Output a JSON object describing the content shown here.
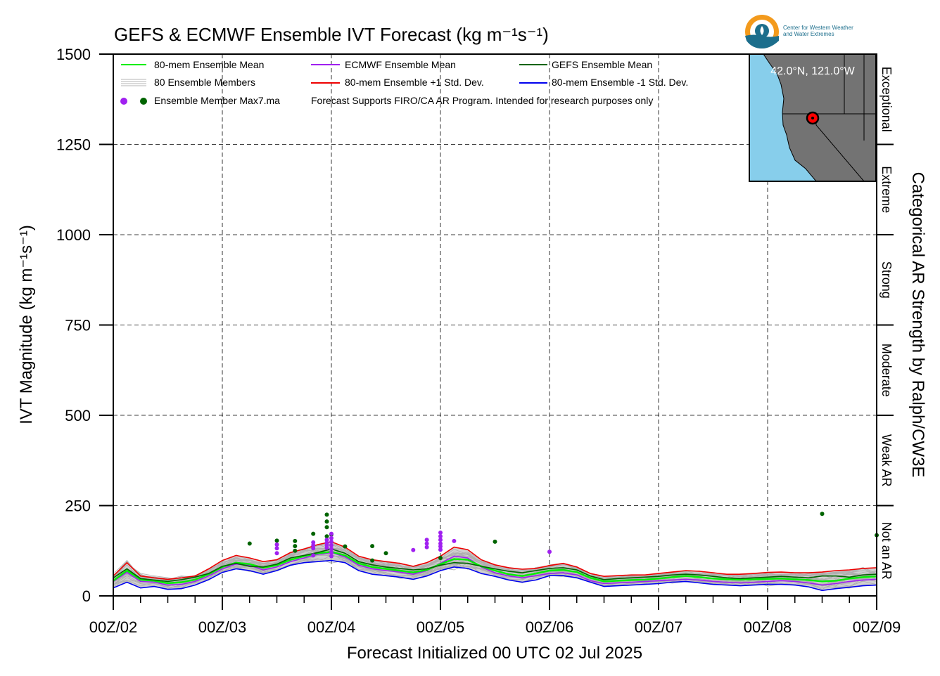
{
  "chart_data": {
    "type": "line",
    "title": "GEFS & ECMWF Ensemble IVT Forecast (kg m⁻¹s⁻¹)",
    "xlabel": "Forecast Initialized 00 UTC 02 Jul 2025",
    "ylabel": "IVT Magnitude (kg m⁻¹s⁻¹)",
    "ylim": [
      0,
      1500
    ],
    "yticks": [
      0,
      250,
      500,
      750,
      1000,
      1250,
      1500
    ],
    "xlim_hours": [
      0,
      168
    ],
    "xticks": [
      "00Z/02",
      "00Z/03",
      "00Z/04",
      "00Z/05",
      "00Z/06",
      "00Z/07",
      "00Z/08",
      "00Z/09"
    ],
    "grid": true,
    "legend_placement": "top-left",
    "legend": {
      "ens_mean": "80-mem Ensemble Mean",
      "members": "80 Ensemble Members",
      "max": "Ensemble Member Max7.ma",
      "ecmwf_mean": "ECMWF Ensemble Mean",
      "plus_sd": "80-mem Ensemble +1 Std. Dev.",
      "note": "Forecast Supports FIRO/CA AR Program. Intended for research purposes only",
      "gefs_mean": "GEFS Ensemble Mean",
      "minus_sd": "80-mem Ensemble -1 Std. Dev."
    },
    "categories_axis": {
      "label": "Categorical AR Strength by Ralph/CW3E",
      "bands": [
        {
          "name": "Not an AR",
          "from": 0,
          "to": 250
        },
        {
          "name": "Weak AR",
          "from": 250,
          "to": 500
        },
        {
          "name": "Moderate",
          "from": 500,
          "to": 750
        },
        {
          "name": "Strong",
          "from": 750,
          "to": 1000
        },
        {
          "name": "Extreme",
          "from": 1000,
          "to": 1250
        },
        {
          "name": "Exceptional",
          "from": 1250,
          "to": 1500
        }
      ]
    },
    "inset_map": {
      "location": "42.0°N, 121.0°W",
      "land_color": "#737373",
      "ocean_color": "#87ceeb",
      "marker_color": "#ff0000"
    },
    "colors": {
      "ens_mean": "#00ee00",
      "ecmwf_mean": "#a020f0",
      "gefs_mean": "#006400",
      "plus_sd": "#ee0000",
      "minus_sd": "#0000ee",
      "members": "#b4b4b4",
      "spread_fill": "#aaaaaa"
    },
    "x_hours": [
      0,
      3,
      6,
      9,
      12,
      15,
      18,
      21,
      24,
      27,
      30,
      33,
      36,
      39,
      42,
      45,
      48,
      51,
      54,
      57,
      60,
      63,
      66,
      69,
      72,
      75,
      78,
      81,
      84,
      87,
      90,
      93,
      96,
      99,
      102,
      105,
      108,
      111,
      114,
      117,
      120,
      123,
      126,
      129,
      132,
      135,
      138,
      141,
      144,
      147,
      150,
      153,
      156,
      159,
      162,
      165,
      168
    ],
    "series": [
      {
        "name": "80-mem Ensemble Mean",
        "values": [
          42,
          70,
          45,
          42,
          35,
          38,
          45,
          60,
          80,
          92,
          88,
          78,
          85,
          100,
          110,
          118,
          122,
          112,
          90,
          80,
          75,
          70,
          65,
          72,
          88,
          102,
          100,
          82,
          70,
          60,
          55,
          62,
          70,
          72,
          66,
          50,
          40,
          42,
          44,
          45,
          48,
          52,
          55,
          52,
          48,
          46,
          45,
          46,
          47,
          48,
          46,
          44,
          40,
          42,
          48,
          52,
          54
        ]
      },
      {
        "name": "ECMWF Ensemble Mean",
        "values": [
          40,
          65,
          40,
          38,
          30,
          32,
          40,
          55,
          75,
          88,
          85,
          72,
          80,
          95,
          105,
          115,
          120,
          108,
          85,
          75,
          70,
          66,
          60,
          70,
          90,
          110,
          105,
          80,
          64,
          55,
          50,
          56,
          62,
          64,
          58,
          42,
          34,
          36,
          38,
          40,
          42,
          44,
          46,
          44,
          40,
          38,
          36,
          38,
          40,
          42,
          40,
          36,
          30,
          34,
          40,
          44,
          46
        ]
      },
      {
        "name": "GEFS Ensemble Mean",
        "values": [
          50,
          75,
          48,
          44,
          40,
          45,
          52,
          62,
          82,
          90,
          82,
          80,
          88,
          105,
          112,
          120,
          130,
          118,
          95,
          86,
          80,
          76,
          72,
          75,
          85,
          92,
          90,
          82,
          75,
          68,
          64,
          70,
          76,
          78,
          72,
          55,
          45,
          48,
          50,
          52,
          54,
          58,
          60,
          58,
          54,
          50,
          48,
          50,
          52,
          54,
          52,
          50,
          55,
          55,
          52,
          58,
          60
        ]
      },
      {
        "name": "80-mem Ensemble +1 Std. Dev.",
        "values": [
          55,
          92,
          55,
          50,
          46,
          50,
          55,
          75,
          98,
          112,
          105,
          95,
          100,
          120,
          130,
          142,
          150,
          135,
          110,
          100,
          95,
          90,
          82,
          92,
          110,
          135,
          128,
          100,
          86,
          78,
          74,
          76,
          84,
          90,
          80,
          62,
          54,
          56,
          58,
          58,
          62,
          66,
          70,
          68,
          64,
          60,
          60,
          62,
          65,
          66,
          64,
          64,
          66,
          70,
          72,
          76,
          78
        ]
      },
      {
        "name": "80-mem Ensemble -1 Std. Dev.",
        "values": [
          22,
          38,
          22,
          26,
          18,
          20,
          30,
          45,
          65,
          75,
          70,
          60,
          70,
          85,
          92,
          95,
          98,
          92,
          70,
          60,
          56,
          52,
          46,
          55,
          70,
          80,
          76,
          62,
          54,
          44,
          38,
          44,
          56,
          56,
          50,
          38,
          26,
          28,
          30,
          32,
          34,
          38,
          40,
          36,
          32,
          30,
          28,
          30,
          32,
          32,
          30,
          25,
          15,
          20,
          24,
          28,
          30
        ]
      }
    ],
    "member_max": [
      {
        "x": 30,
        "y": 145,
        "model": "GEFS"
      },
      {
        "x": 36,
        "y": 153,
        "model": "GEFS"
      },
      {
        "x": 36,
        "y": 142,
        "model": "ECMWF"
      },
      {
        "x": 36,
        "y": 132,
        "model": "ECMWF"
      },
      {
        "x": 36,
        "y": 118,
        "model": "ECMWF"
      },
      {
        "x": 40,
        "y": 152,
        "model": "GEFS"
      },
      {
        "x": 40,
        "y": 138,
        "model": "GEFS"
      },
      {
        "x": 40,
        "y": 125,
        "model": "GEFS"
      },
      {
        "x": 44,
        "y": 172,
        "model": "GEFS"
      },
      {
        "x": 44,
        "y": 148,
        "model": "ECMWF"
      },
      {
        "x": 44,
        "y": 140,
        "model": "ECMWF"
      },
      {
        "x": 44,
        "y": 132,
        "model": "ECMWF"
      },
      {
        "x": 44,
        "y": 112,
        "model": "ECMWF"
      },
      {
        "x": 47,
        "y": 225,
        "model": "GEFS"
      },
      {
        "x": 47,
        "y": 206,
        "model": "GEFS"
      },
      {
        "x": 47,
        "y": 190,
        "model": "GEFS"
      },
      {
        "x": 47,
        "y": 165,
        "model": "GEFS"
      },
      {
        "x": 47,
        "y": 155,
        "model": "ECMWF"
      },
      {
        "x": 47,
        "y": 147,
        "model": "ECMWF"
      },
      {
        "x": 47,
        "y": 140,
        "model": "ECMWF"
      },
      {
        "x": 47,
        "y": 133,
        "model": "ECMWF"
      },
      {
        "x": 48,
        "y": 170,
        "model": "GEFS"
      },
      {
        "x": 48,
        "y": 172,
        "model": "ECMWF"
      },
      {
        "x": 48,
        "y": 160,
        "model": "ECMWF"
      },
      {
        "x": 48,
        "y": 150,
        "model": "ECMWF"
      },
      {
        "x": 48,
        "y": 140,
        "model": "ECMWF"
      },
      {
        "x": 48,
        "y": 130,
        "model": "ECMWF"
      },
      {
        "x": 48,
        "y": 120,
        "model": "ECMWF"
      },
      {
        "x": 48,
        "y": 110,
        "model": "ECMWF"
      },
      {
        "x": 51,
        "y": 137,
        "model": "GEFS"
      },
      {
        "x": 57,
        "y": 138,
        "model": "GEFS"
      },
      {
        "x": 57,
        "y": 98,
        "model": "GEFS"
      },
      {
        "x": 60,
        "y": 118,
        "model": "GEFS"
      },
      {
        "x": 66,
        "y": 127,
        "model": "ECMWF"
      },
      {
        "x": 69,
        "y": 155,
        "model": "ECMWF"
      },
      {
        "x": 69,
        "y": 145,
        "model": "ECMWF"
      },
      {
        "x": 69,
        "y": 135,
        "model": "ECMWF"
      },
      {
        "x": 72,
        "y": 175,
        "model": "ECMWF"
      },
      {
        "x": 72,
        "y": 165,
        "model": "ECMWF"
      },
      {
        "x": 72,
        "y": 155,
        "model": "ECMWF"
      },
      {
        "x": 72,
        "y": 145,
        "model": "ECMWF"
      },
      {
        "x": 72,
        "y": 137,
        "model": "ECMWF"
      },
      {
        "x": 72,
        "y": 128,
        "model": "ECMWF"
      },
      {
        "x": 72,
        "y": 105,
        "model": "GEFS"
      },
      {
        "x": 75,
        "y": 152,
        "model": "ECMWF"
      },
      {
        "x": 84,
        "y": 150,
        "model": "GEFS"
      },
      {
        "x": 96,
        "y": 122,
        "model": "ECMWF"
      },
      {
        "x": 156,
        "y": 227,
        "model": "GEFS"
      },
      {
        "x": 168,
        "y": 168,
        "model": "GEFS"
      }
    ]
  },
  "logo": {
    "text": "Center for Western Weather\nand Water Extremes"
  }
}
